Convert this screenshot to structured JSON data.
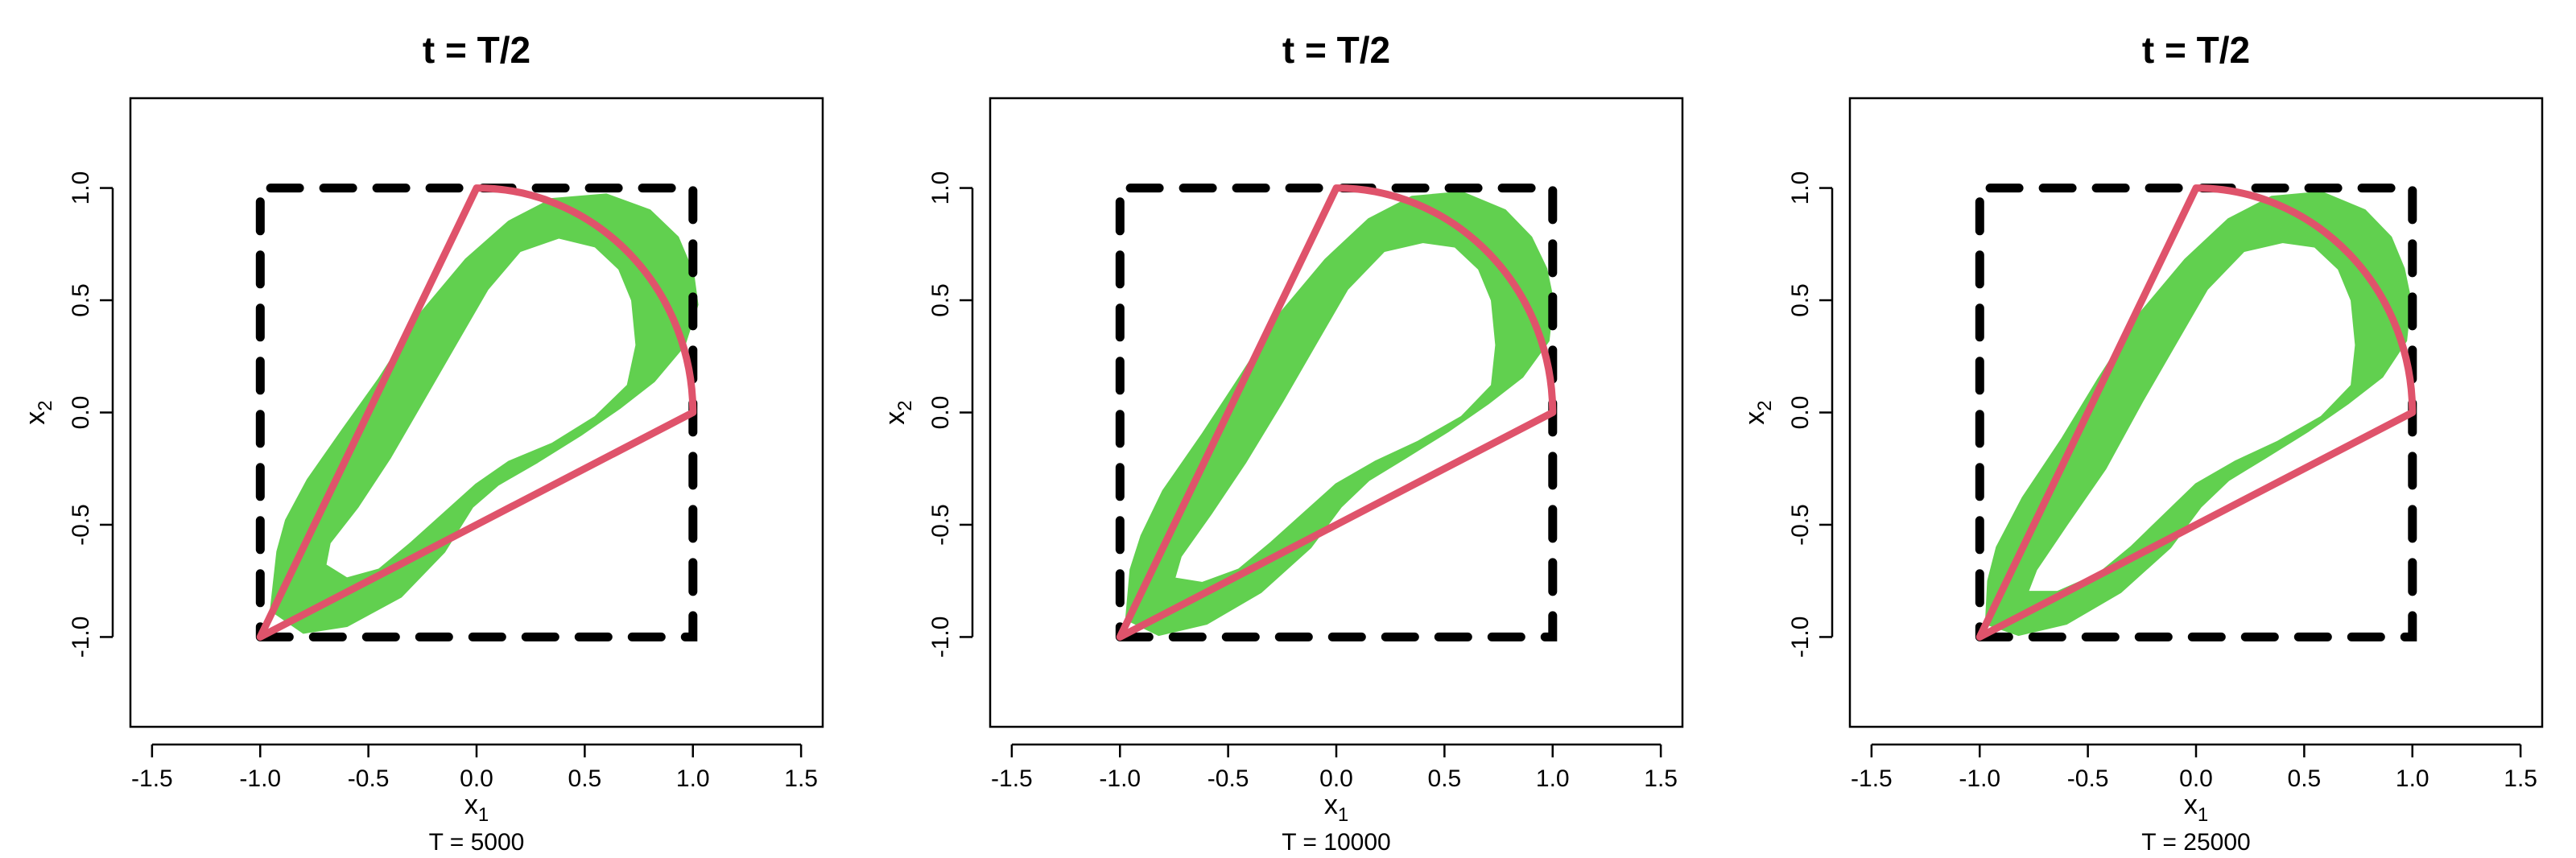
{
  "figure": {
    "panels": [
      {
        "title": "t = T/2",
        "subtitle": "T = 5000"
      },
      {
        "title": "t = T/2",
        "subtitle": "T = 10000"
      },
      {
        "title": "t = T/2",
        "subtitle": "T = 25000"
      }
    ]
  },
  "colors": {
    "trajectory": "#61D04F",
    "hull": "#DF536B",
    "box": "#000000"
  },
  "chart_data": [
    {
      "type": "line",
      "title": "t = T/2",
      "xlabel": "x1",
      "ylabel": "x2",
      "subtitle": "T = 5000",
      "xlim": [
        -1.6,
        1.6
      ],
      "ylim": [
        -1.4,
        1.4
      ],
      "xticks": [
        -1.5,
        -1.0,
        -0.5,
        0.0,
        0.5,
        1.0,
        1.5
      ],
      "yticks": [
        -1.0,
        -0.5,
        0.0,
        0.5,
        1.0
      ],
      "grid": false,
      "series": [
        {
          "style": "dashed-box",
          "x": [
            -1,
            1,
            1,
            -1,
            -1
          ],
          "y": [
            -1,
            -1,
            1,
            1,
            -1
          ]
        },
        {
          "style": "hull-sector",
          "arc_from_deg": 0,
          "arc_to_deg": 90,
          "x": [
            -1,
            0,
            1,
            -1
          ],
          "y": [
            -1,
            1,
            0,
            -1
          ]
        },
        {
          "style": "trajectory-band",
          "outer_x": [
            -0.92,
            -0.95,
            -0.8,
            -0.6,
            -0.35,
            -0.15,
            -0.02,
            0.1,
            0.28,
            0.48,
            0.66,
            0.82,
            0.96,
            1.02,
            1.0,
            0.93,
            0.8,
            0.6,
            0.35,
            0.15,
            -0.05,
            -0.25,
            -0.45,
            -0.62,
            -0.78,
            -0.88
          ],
          "outer_y": [
            -0.62,
            -0.88,
            -0.98,
            -0.95,
            -0.82,
            -0.62,
            -0.42,
            -0.32,
            -0.22,
            -0.1,
            0.02,
            0.14,
            0.3,
            0.48,
            0.62,
            0.78,
            0.9,
            0.97,
            0.95,
            0.85,
            0.68,
            0.45,
            0.15,
            -0.08,
            -0.3,
            -0.48
          ],
          "inner_x": [
            -0.7,
            -0.6,
            -0.45,
            -0.3,
            -0.15,
            0.0,
            0.15,
            0.35,
            0.55,
            0.7,
            0.74,
            0.72,
            0.66,
            0.55,
            0.38,
            0.2,
            0.05,
            -0.1,
            -0.25,
            -0.4,
            -0.55,
            -0.68
          ],
          "inner_y": [
            -0.68,
            -0.74,
            -0.7,
            -0.58,
            -0.45,
            -0.32,
            -0.22,
            -0.14,
            -0.02,
            0.12,
            0.3,
            0.5,
            0.64,
            0.74,
            0.78,
            0.72,
            0.55,
            0.3,
            0.05,
            -0.2,
            -0.42,
            -0.58
          ]
        }
      ]
    },
    {
      "type": "line",
      "title": "t = T/2",
      "xlabel": "x1",
      "ylabel": "x2",
      "subtitle": "T = 10000",
      "xlim": [
        -1.6,
        1.6
      ],
      "ylim": [
        -1.4,
        1.4
      ],
      "xticks": [
        -1.5,
        -1.0,
        -0.5,
        0.0,
        0.5,
        1.0,
        1.5
      ],
      "yticks": [
        -1.0,
        -0.5,
        0.0,
        0.5,
        1.0
      ],
      "grid": false,
      "series": [
        {
          "style": "dashed-box",
          "x": [
            -1,
            1,
            1,
            -1,
            -1
          ],
          "y": [
            -1,
            -1,
            1,
            1,
            -1
          ]
        },
        {
          "style": "hull-sector",
          "arc_from_deg": 0,
          "arc_to_deg": 90,
          "x": [
            -1,
            0,
            1,
            -1
          ],
          "y": [
            -1,
            1,
            0,
            -1
          ]
        },
        {
          "style": "trajectory-band",
          "outer_x": [
            -0.95,
            -0.97,
            -0.82,
            -0.6,
            -0.35,
            -0.12,
            0.02,
            0.15,
            0.32,
            0.52,
            0.7,
            0.86,
            0.98,
            1.0,
            0.97,
            0.9,
            0.78,
            0.58,
            0.35,
            0.15,
            -0.05,
            -0.25,
            -0.45,
            -0.62,
            -0.8,
            -0.9
          ],
          "outer_y": [
            -0.7,
            -0.92,
            -0.99,
            -0.94,
            -0.8,
            -0.6,
            -0.42,
            -0.3,
            -0.2,
            -0.08,
            0.04,
            0.16,
            0.32,
            0.5,
            0.64,
            0.78,
            0.9,
            0.98,
            0.96,
            0.86,
            0.68,
            0.45,
            0.15,
            -0.1,
            -0.35,
            -0.55
          ],
          "inner_x": [
            -0.75,
            -0.62,
            -0.45,
            -0.3,
            -0.15,
            0.0,
            0.18,
            0.38,
            0.58,
            0.72,
            0.74,
            0.72,
            0.66,
            0.55,
            0.4,
            0.22,
            0.05,
            -0.1,
            -0.25,
            -0.42,
            -0.58,
            -0.72
          ],
          "inner_y": [
            -0.74,
            -0.76,
            -0.7,
            -0.58,
            -0.45,
            -0.32,
            -0.22,
            -0.13,
            -0.02,
            0.12,
            0.3,
            0.5,
            0.64,
            0.74,
            0.76,
            0.72,
            0.55,
            0.3,
            0.05,
            -0.22,
            -0.45,
            -0.64
          ]
        }
      ]
    },
    {
      "type": "line",
      "title": "t = T/2",
      "xlabel": "x1",
      "ylabel": "x2",
      "subtitle": "T = 25000",
      "xlim": [
        -1.6,
        1.6
      ],
      "ylim": [
        -1.4,
        1.4
      ],
      "xticks": [
        -1.5,
        -1.0,
        -0.5,
        0.0,
        0.5,
        1.0,
        1.5
      ],
      "yticks": [
        -1.0,
        -0.5,
        0.0,
        0.5,
        1.0
      ],
      "grid": false,
      "series": [
        {
          "style": "dashed-box",
          "x": [
            -1,
            1,
            1,
            -1,
            -1
          ],
          "y": [
            -1,
            -1,
            1,
            1,
            -1
          ]
        },
        {
          "style": "hull-sector",
          "arc_from_deg": 0,
          "arc_to_deg": 90,
          "x": [
            -1,
            0,
            1,
            -1
          ],
          "y": [
            -1,
            1,
            0,
            -1
          ]
        },
        {
          "style": "trajectory-band",
          "outer_x": [
            -0.96,
            -0.97,
            -0.82,
            -0.6,
            -0.35,
            -0.12,
            0.02,
            0.15,
            0.32,
            0.52,
            0.7,
            0.86,
            0.97,
            0.99,
            0.96,
            0.9,
            0.78,
            0.58,
            0.35,
            0.15,
            -0.05,
            -0.25,
            -0.45,
            -0.62,
            -0.8,
            -0.92
          ],
          "outer_y": [
            -0.75,
            -0.94,
            -0.99,
            -0.94,
            -0.8,
            -0.6,
            -0.42,
            -0.3,
            -0.2,
            -0.08,
            0.04,
            0.16,
            0.32,
            0.5,
            0.64,
            0.78,
            0.9,
            0.98,
            0.96,
            0.86,
            0.68,
            0.45,
            0.15,
            -0.12,
            -0.38,
            -0.6
          ],
          "inner_x": [
            -0.78,
            -0.64,
            -0.45,
            -0.3,
            -0.15,
            0.0,
            0.18,
            0.38,
            0.58,
            0.72,
            0.74,
            0.72,
            0.66,
            0.55,
            0.4,
            0.22,
            0.05,
            -0.1,
            -0.25,
            -0.42,
            -0.6,
            -0.74
          ],
          "inner_y": [
            -0.8,
            -0.8,
            -0.72,
            -0.6,
            -0.46,
            -0.32,
            -0.22,
            -0.13,
            -0.02,
            0.12,
            0.3,
            0.5,
            0.64,
            0.74,
            0.76,
            0.72,
            0.55,
            0.3,
            0.05,
            -0.25,
            -0.5,
            -0.7
          ]
        }
      ]
    }
  ]
}
